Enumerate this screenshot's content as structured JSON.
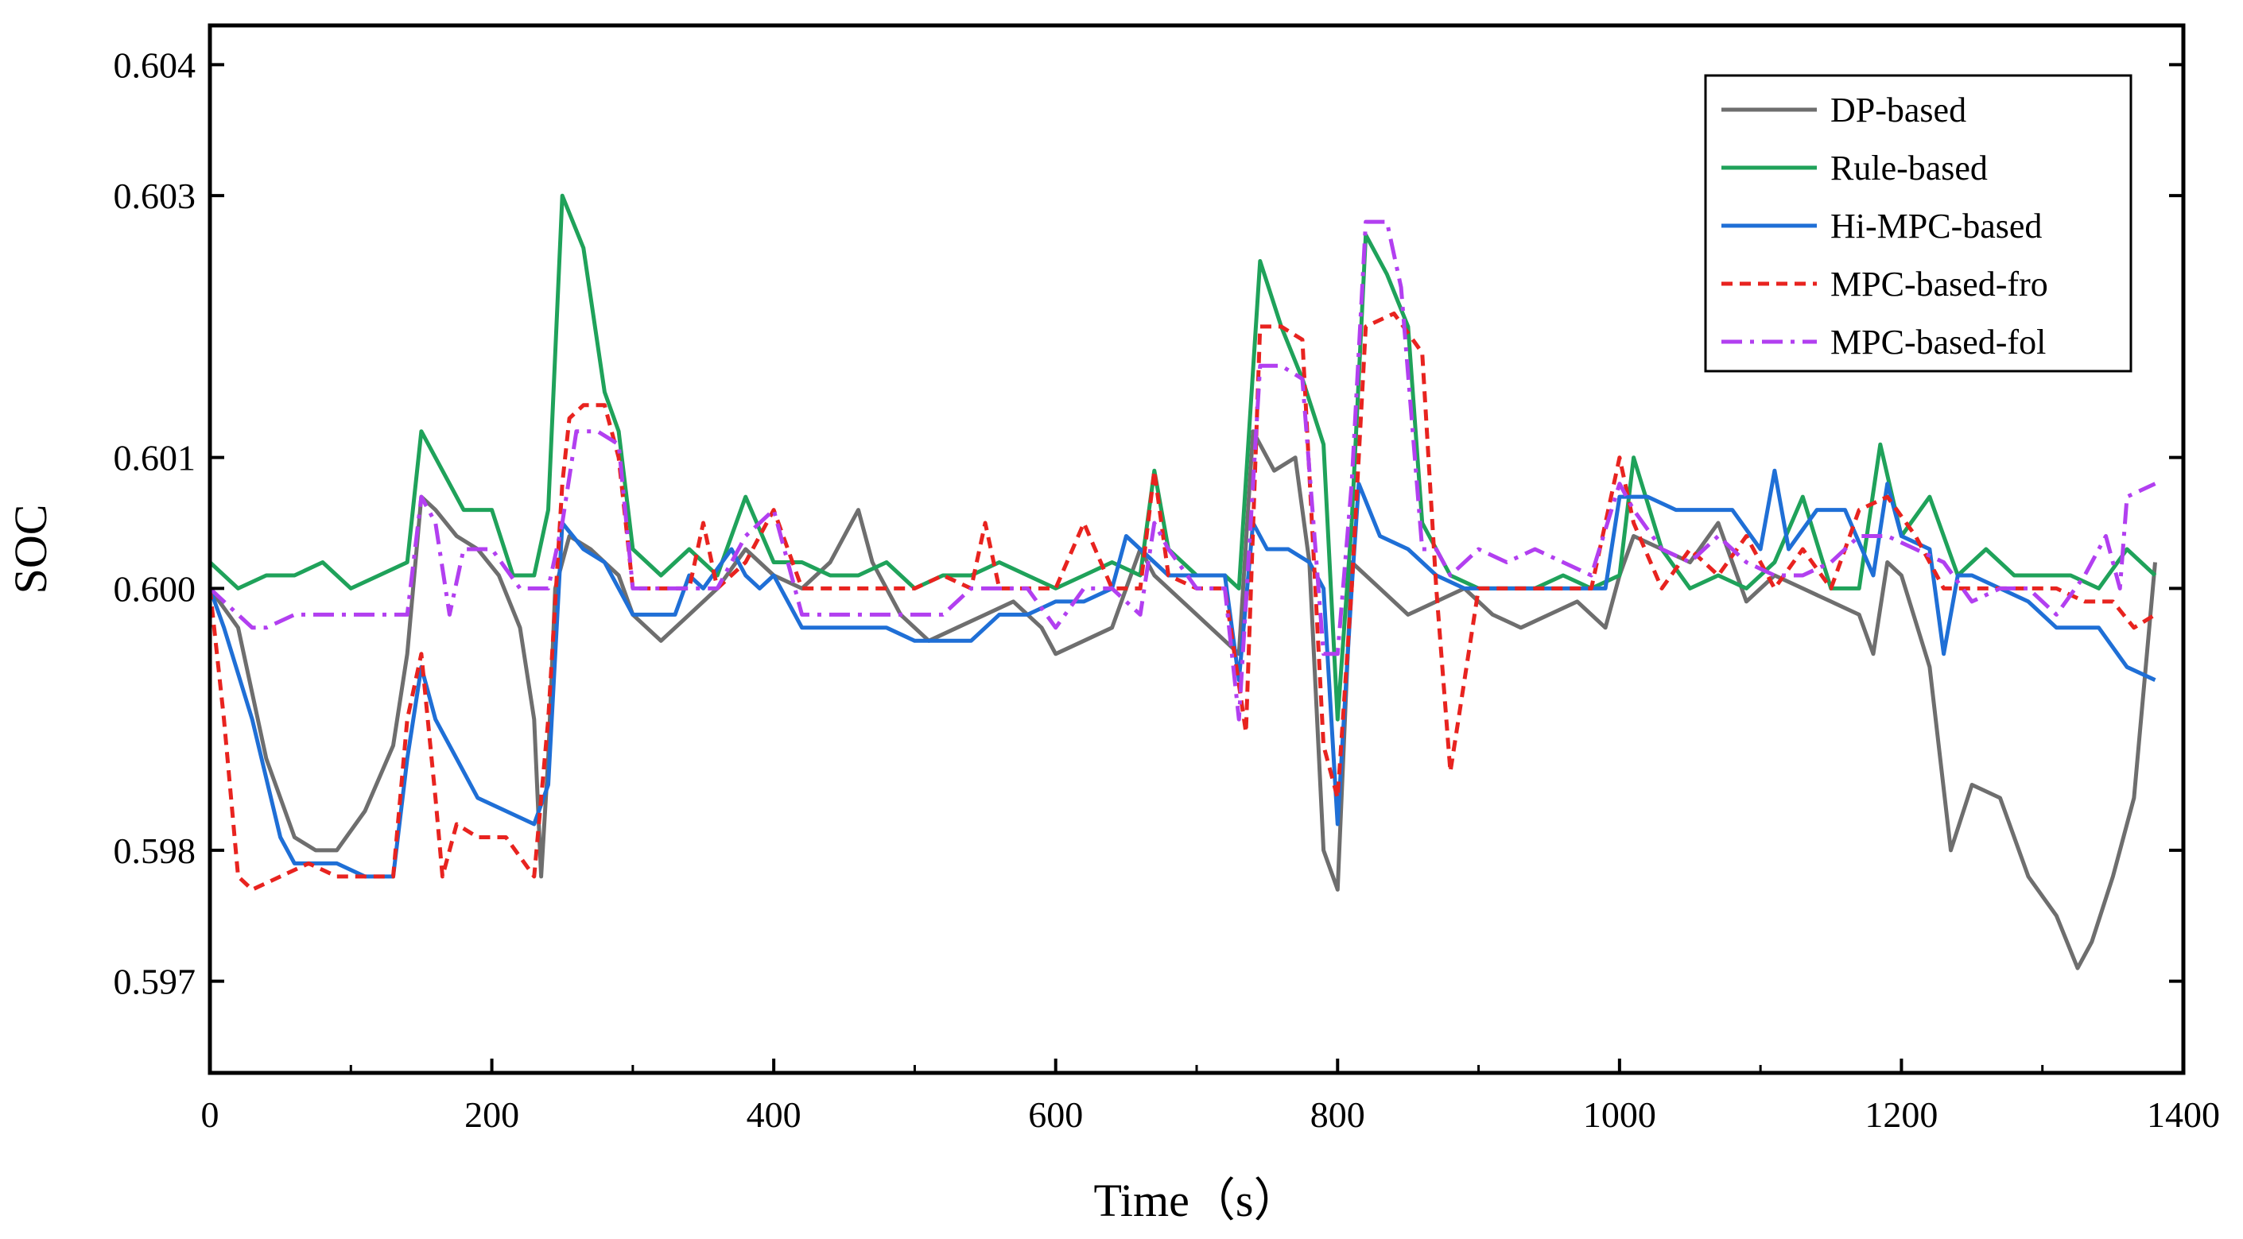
{
  "chart_data": {
    "type": "line",
    "title": "",
    "xlabel": "Time（s）",
    "ylabel": "SOC",
    "xlim": [
      0,
      1400
    ],
    "ylim": [
      0.5963,
      0.6043
    ],
    "xticks": [
      0,
      200,
      400,
      600,
      800,
      1000,
      1200,
      1400
    ],
    "xtick_labels": [
      "0",
      "200",
      "400",
      "600",
      "800",
      "1000",
      "1200",
      "1400"
    ],
    "yticks": [
      0.597,
      0.598,
      0.6,
      0.601,
      0.603,
      0.604
    ],
    "ytick_labels": [
      "0.597",
      "0.598",
      "0.600",
      "0.601",
      "0.603",
      "0.604"
    ],
    "grid": false,
    "legend_position": "top-right",
    "series": [
      {
        "name": "DP-based",
        "color": "#6e6e6e",
        "dash": "solid",
        "x": [
          0,
          20,
          40,
          60,
          75,
          90,
          110,
          130,
          140,
          150,
          160,
          175,
          190,
          205,
          220,
          230,
          235,
          240,
          245,
          255,
          270,
          290,
          300,
          320,
          340,
          360,
          380,
          400,
          420,
          440,
          460,
          470,
          490,
          510,
          530,
          550,
          570,
          590,
          600,
          620,
          640,
          660,
          670,
          690,
          710,
          730,
          740,
          755,
          770,
          780,
          790,
          800,
          810,
          830,
          850,
          870,
          890,
          910,
          930,
          950,
          970,
          990,
          1000,
          1010,
          1030,
          1050,
          1070,
          1090,
          1110,
          1130,
          1150,
          1170,
          1180,
          1190,
          1200,
          1220,
          1235,
          1250,
          1270,
          1290,
          1310,
          1325,
          1335,
          1350,
          1365,
          1380
        ],
        "y": [
          0.6,
          0.5997,
          0.5987,
          0.5981,
          0.598,
          0.598,
          0.5983,
          0.5988,
          0.5995,
          0.6007,
          0.6006,
          0.6004,
          0.6003,
          0.6001,
          0.5997,
          0.599,
          0.5978,
          0.5987,
          0.6,
          0.6004,
          0.6003,
          0.6001,
          0.5998,
          0.5996,
          0.5998,
          0.6,
          0.6003,
          0.6001,
          0.6,
          0.6002,
          0.6006,
          0.6002,
          0.5998,
          0.5996,
          0.5997,
          0.5998,
          0.5999,
          0.5997,
          0.5995,
          0.5996,
          0.5997,
          0.6003,
          0.6001,
          0.5999,
          0.5997,
          0.5995,
          0.6012,
          0.6009,
          0.601,
          0.6002,
          0.598,
          0.5977,
          0.6002,
          0.6,
          0.5998,
          0.5999,
          0.6,
          0.5998,
          0.5997,
          0.5998,
          0.5999,
          0.5997,
          0.6001,
          0.6004,
          0.6003,
          0.6002,
          0.6005,
          0.5999,
          0.6001,
          0.6,
          0.5999,
          0.5998,
          0.5995,
          0.6002,
          0.6001,
          0.5994,
          0.598,
          0.5985,
          0.5984,
          0.5978,
          0.5975,
          0.5971,
          0.5973,
          0.5978,
          0.5984,
          0.6002
        ]
      },
      {
        "name": "Rule-based",
        "color": "#1fa25a",
        "dash": "solid",
        "x": [
          0,
          20,
          40,
          60,
          80,
          100,
          120,
          140,
          150,
          165,
          180,
          200,
          215,
          230,
          240,
          250,
          265,
          280,
          290,
          300,
          320,
          340,
          360,
          380,
          400,
          420,
          440,
          460,
          480,
          500,
          520,
          540,
          560,
          580,
          600,
          620,
          640,
          660,
          670,
          680,
          700,
          720,
          730,
          745,
          760,
          775,
          790,
          800,
          810,
          820,
          835,
          850,
          860,
          880,
          900,
          920,
          940,
          960,
          980,
          1000,
          1010,
          1030,
          1050,
          1070,
          1090,
          1110,
          1130,
          1150,
          1170,
          1185,
          1200,
          1220,
          1240,
          1260,
          1280,
          1300,
          1320,
          1340,
          1360,
          1380
        ],
        "y": [
          0.6002,
          0.6,
          0.6001,
          0.6001,
          0.6002,
          0.6,
          0.6001,
          0.6002,
          0.6012,
          0.6009,
          0.6006,
          0.6006,
          0.6001,
          0.6001,
          0.6006,
          0.603,
          0.6026,
          0.6015,
          0.6012,
          0.6003,
          0.6001,
          0.6003,
          0.6001,
          0.6007,
          0.6002,
          0.6002,
          0.6001,
          0.6001,
          0.6002,
          0.6,
          0.6001,
          0.6001,
          0.6002,
          0.6001,
          0.6,
          0.6001,
          0.6002,
          0.6001,
          0.6009,
          0.6003,
          0.6001,
          0.6001,
          0.6,
          0.6025,
          0.602,
          0.6016,
          0.6011,
          0.599,
          0.6005,
          0.6027,
          0.6024,
          0.602,
          0.6005,
          0.6001,
          0.6,
          0.6,
          0.6,
          0.6001,
          0.6,
          0.6001,
          0.601,
          0.6003,
          0.6,
          0.6001,
          0.6,
          0.6002,
          0.6007,
          0.6,
          0.6,
          0.6011,
          0.6004,
          0.6007,
          0.6001,
          0.6003,
          0.6001,
          0.6001,
          0.6001,
          0.6,
          0.6003,
          0.6001
        ]
      },
      {
        "name": "Hi-MPC-based",
        "color": "#1f6fd6",
        "dash": "solid",
        "x": [
          0,
          10,
          30,
          50,
          60,
          70,
          90,
          110,
          130,
          140,
          150,
          160,
          175,
          190,
          210,
          230,
          240,
          250,
          265,
          280,
          300,
          310,
          330,
          340,
          350,
          370,
          380,
          390,
          400,
          420,
          440,
          460,
          480,
          500,
          520,
          540,
          560,
          580,
          600,
          620,
          640,
          650,
          660,
          670,
          680,
          700,
          720,
          730,
          740,
          750,
          765,
          780,
          790,
          800,
          810,
          815,
          830,
          850,
          860,
          870,
          890,
          910,
          930,
          950,
          970,
          990,
          1000,
          1020,
          1040,
          1060,
          1080,
          1100,
          1110,
          1120,
          1140,
          1160,
          1180,
          1190,
          1200,
          1220,
          1230,
          1240,
          1250,
          1270,
          1290,
          1310,
          1320,
          1340,
          1360,
          1380
        ],
        "y": [
          0.6,
          0.5997,
          0.599,
          0.5981,
          0.5979,
          0.5979,
          0.5979,
          0.5978,
          0.5978,
          0.5987,
          0.5994,
          0.599,
          0.5987,
          0.5984,
          0.5983,
          0.5982,
          0.5985,
          0.6005,
          0.6003,
          0.6002,
          0.5998,
          0.5998,
          0.5998,
          0.6001,
          0.6,
          0.6003,
          0.6001,
          0.6,
          0.6001,
          0.5997,
          0.5997,
          0.5997,
          0.5997,
          0.5996,
          0.5996,
          0.5996,
          0.5998,
          0.5998,
          0.5999,
          0.5999,
          0.6,
          0.6004,
          0.6003,
          0.6002,
          0.6001,
          0.6001,
          0.6001,
          0.5993,
          0.6005,
          0.6003,
          0.6003,
          0.6002,
          0.6,
          0.5982,
          0.6,
          0.6008,
          0.6004,
          0.6003,
          0.6002,
          0.6001,
          0.6,
          0.6,
          0.6,
          0.6,
          0.6,
          0.6,
          0.6007,
          0.6007,
          0.6006,
          0.6006,
          0.6006,
          0.6003,
          0.6009,
          0.6003,
          0.6006,
          0.6006,
          0.6001,
          0.6008,
          0.6004,
          0.6003,
          0.5995,
          0.6001,
          0.6001,
          0.6,
          0.5999,
          0.5997,
          0.5997,
          0.5997,
          0.5994,
          0.5993
        ]
      },
      {
        "name": "MPC-based-fro",
        "color": "#e8231f",
        "dash": "dash",
        "x": [
          0,
          10,
          20,
          30,
          50,
          70,
          90,
          110,
          130,
          140,
          150,
          160,
          165,
          175,
          190,
          210,
          230,
          240,
          250,
          255,
          265,
          280,
          290,
          300,
          320,
          340,
          350,
          360,
          380,
          400,
          410,
          420,
          440,
          460,
          480,
          500,
          520,
          540,
          550,
          560,
          580,
          600,
          620,
          640,
          660,
          670,
          680,
          700,
          720,
          735,
          745,
          760,
          775,
          790,
          800,
          810,
          820,
          840,
          860,
          870,
          880,
          900,
          920,
          940,
          960,
          980,
          1000,
          1010,
          1030,
          1050,
          1070,
          1090,
          1110,
          1130,
          1150,
          1170,
          1190,
          1210,
          1230,
          1250,
          1270,
          1290,
          1310,
          1330,
          1350,
          1365,
          1380
        ],
        "y": [
          0.6,
          0.599,
          0.5978,
          0.5977,
          0.5978,
          0.5979,
          0.5978,
          0.5978,
          0.5978,
          0.599,
          0.5995,
          0.5984,
          0.5978,
          0.5982,
          0.5981,
          0.5981,
          0.5978,
          0.599,
          0.6008,
          0.6013,
          0.6014,
          0.6014,
          0.601,
          0.6,
          0.6,
          0.6,
          0.6005,
          0.6,
          0.6002,
          0.6006,
          0.6003,
          0.6,
          0.6,
          0.6,
          0.6,
          0.6,
          0.6001,
          0.6,
          0.6005,
          0.6,
          0.6,
          0.6,
          0.6005,
          0.6,
          0.6,
          0.6009,
          0.6001,
          0.6,
          0.6,
          0.5989,
          0.602,
          0.602,
          0.6019,
          0.5988,
          0.5984,
          0.6,
          0.602,
          0.6021,
          0.6018,
          0.6,
          0.5986,
          0.6,
          0.6,
          0.6,
          0.6,
          0.6,
          0.601,
          0.6005,
          0.6,
          0.6003,
          0.6001,
          0.6004,
          0.6,
          0.6003,
          0.6,
          0.6006,
          0.6007,
          0.6004,
          0.6,
          0.6,
          0.6,
          0.6,
          0.6,
          0.5999,
          0.5999,
          0.5997,
          0.5998
        ]
      },
      {
        "name": "MPC-based-fol",
        "color": "#b23ff0",
        "dash": "dashdot",
        "x": [
          0,
          10,
          20,
          30,
          40,
          60,
          80,
          100,
          120,
          140,
          150,
          160,
          170,
          180,
          200,
          220,
          240,
          250,
          260,
          275,
          290,
          300,
          320,
          340,
          360,
          380,
          400,
          420,
          440,
          460,
          480,
          500,
          520,
          540,
          560,
          580,
          600,
          620,
          640,
          660,
          670,
          680,
          700,
          720,
          730,
          745,
          760,
          775,
          790,
          800,
          810,
          820,
          835,
          845,
          860,
          870,
          880,
          900,
          920,
          940,
          960,
          980,
          1000,
          1010,
          1030,
          1050,
          1070,
          1090,
          1110,
          1130,
          1150,
          1170,
          1190,
          1210,
          1230,
          1250,
          1270,
          1290,
          1310,
          1330,
          1345,
          1355,
          1360,
          1380
        ],
        "y": [
          0.6,
          0.5999,
          0.5998,
          0.5997,
          0.5997,
          0.5998,
          0.5998,
          0.5998,
          0.5998,
          0.5998,
          0.6007,
          0.6005,
          0.5998,
          0.6003,
          0.6003,
          0.6,
          0.6,
          0.6005,
          0.6012,
          0.6012,
          0.6011,
          0.6,
          0.6,
          0.6,
          0.6,
          0.6004,
          0.6006,
          0.5998,
          0.5998,
          0.5998,
          0.5998,
          0.5998,
          0.5998,
          0.6,
          0.6,
          0.6,
          0.5997,
          0.6,
          0.6,
          0.5998,
          0.6005,
          0.6003,
          0.6,
          0.6,
          0.599,
          0.6017,
          0.6017,
          0.6016,
          0.5995,
          0.5995,
          0.6008,
          0.6028,
          0.6028,
          0.6023,
          0.6003,
          0.6003,
          0.6001,
          0.6003,
          0.6002,
          0.6003,
          0.6002,
          0.6001,
          0.6008,
          0.6006,
          0.6003,
          0.6002,
          0.6004,
          0.6002,
          0.6001,
          0.6001,
          0.6002,
          0.6004,
          0.6004,
          0.6003,
          0.6002,
          0.5999,
          0.6,
          0.6,
          0.5998,
          0.6001,
          0.6004,
          0.6,
          0.6007,
          0.6008
        ]
      }
    ]
  }
}
